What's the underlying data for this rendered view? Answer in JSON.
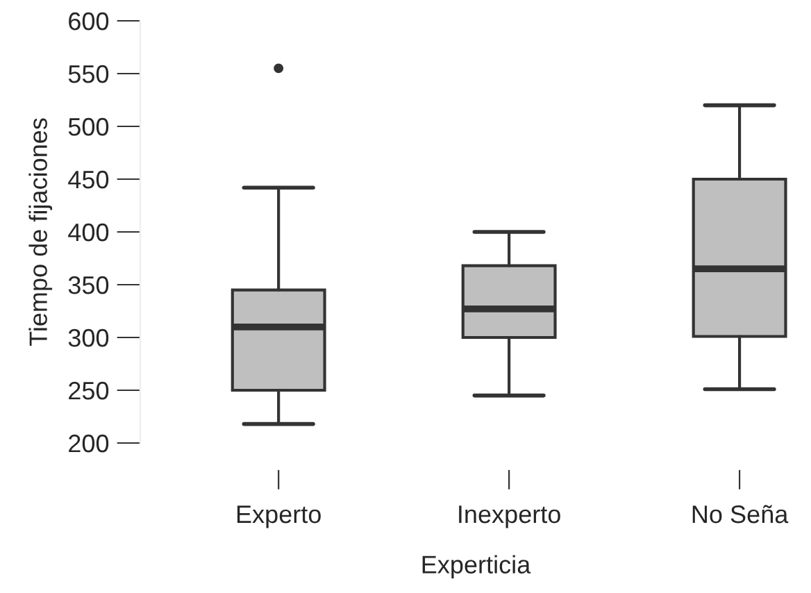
{
  "chart_data": {
    "type": "box",
    "xlabel": "Experticia",
    "ylabel": "Tiempo de fijaciones",
    "categories": [
      "Experto",
      "Inexperto",
      "No Seña"
    ],
    "boxes": [
      {
        "low": 218,
        "q1": 250,
        "median": 310,
        "q3": 345,
        "high": 442,
        "outliers": [
          555
        ]
      },
      {
        "low": 245,
        "q1": 300,
        "median": 327,
        "q3": 368,
        "high": 400
      },
      {
        "low": 251,
        "q1": 301,
        "median": 365,
        "q3": 450,
        "high": 520
      }
    ],
    "colors": [
      "#bfbfbf",
      "#bfbfbf",
      "#bfbfbf"
    ],
    "ylim": [
      200,
      600
    ],
    "yticks": [
      200,
      250,
      300,
      350,
      400,
      450,
      500,
      550,
      600
    ],
    "grid": false
  }
}
